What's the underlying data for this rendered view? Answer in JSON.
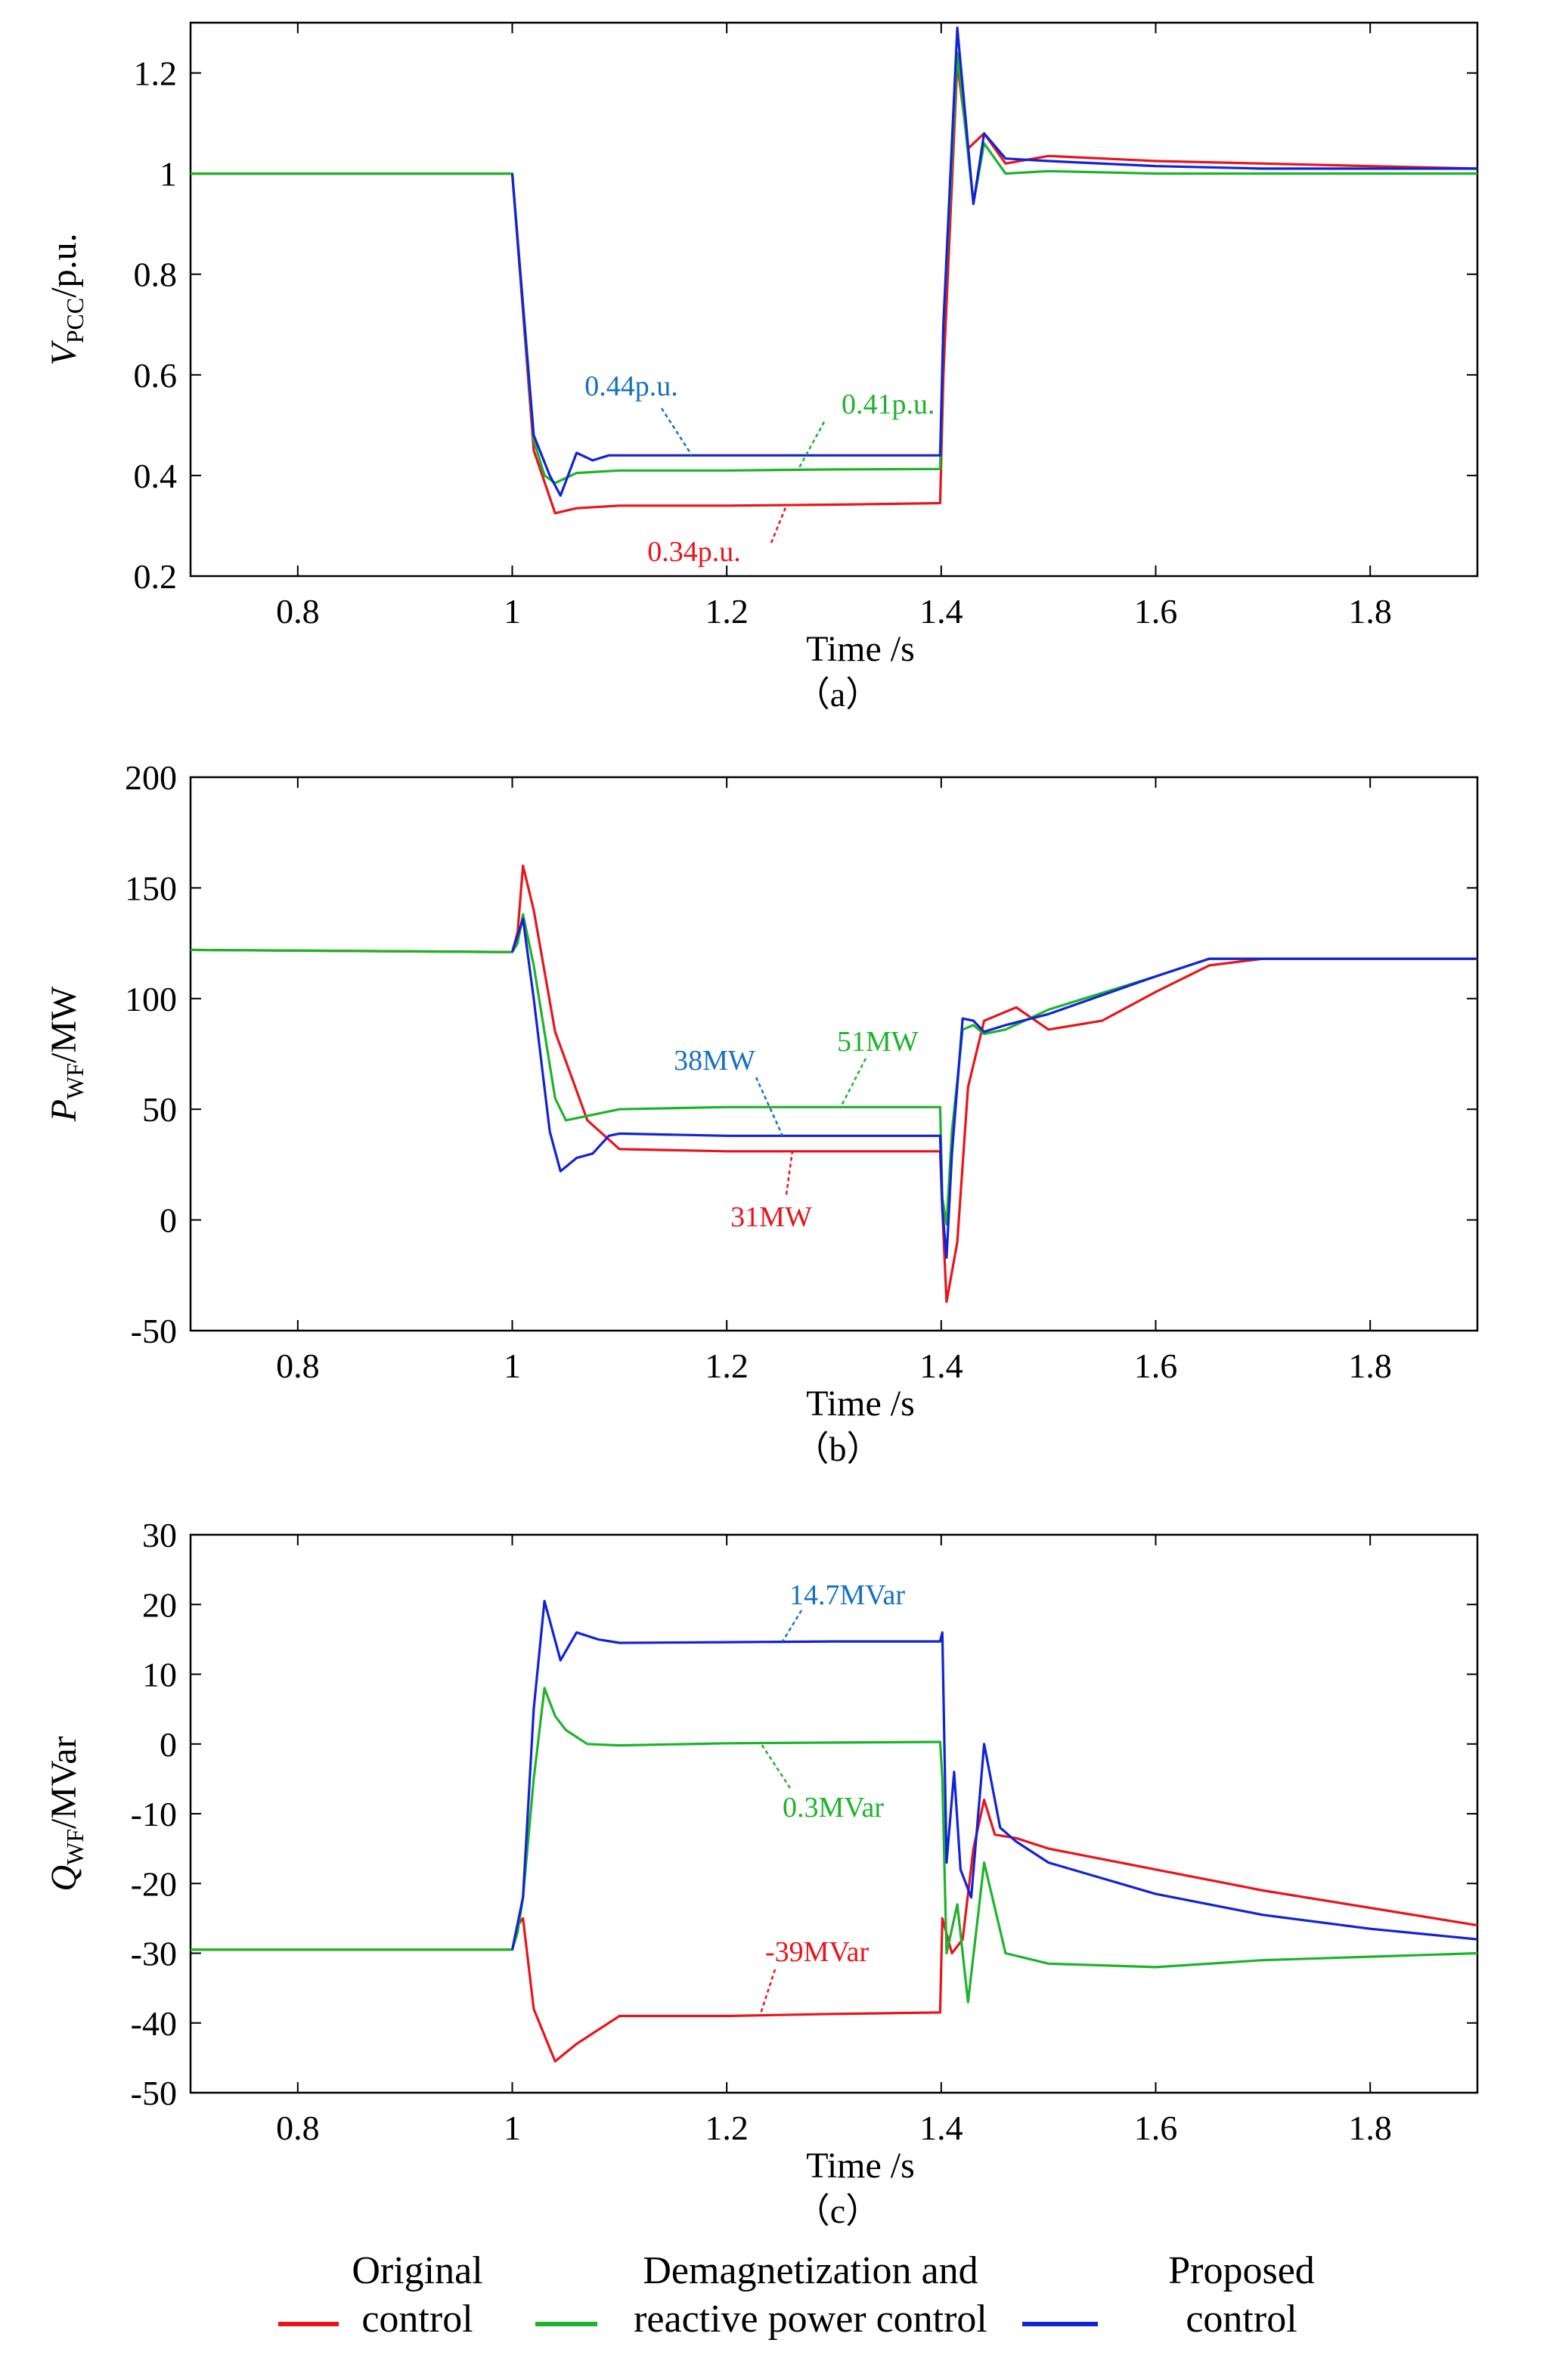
{
  "colors": {
    "original": "#e8141b",
    "demag": "#1db32b",
    "proposed": "#1222d6",
    "annot_original": "#e8141b",
    "annot_demag": "#1db32b",
    "annot_proposed": "#1670c2"
  },
  "legend": [
    {
      "key": "original",
      "lines": [
        "Original",
        "control"
      ]
    },
    {
      "key": "demag",
      "lines": [
        "Demagnetization and",
        "reactive power control"
      ]
    },
    {
      "key": "proposed",
      "lines": [
        "Proposed",
        "control"
      ]
    }
  ],
  "chart_data": [
    {
      "type": "line",
      "caption": "（a）",
      "xlabel": "Time /s",
      "ylabel_main": "V",
      "ylabel_sub": "PCC",
      "ylabel_unit": "/p.u.",
      "xlim": [
        0.7,
        1.9
      ],
      "ylim": [
        0.2,
        1.3
      ],
      "xticks": [
        0.8,
        1,
        1.2,
        1.4,
        1.6,
        1.8
      ],
      "xtick_labels": [
        "0.8",
        "1",
        "1.2",
        "1.4",
        "1.6",
        "1.8"
      ],
      "yticks": [
        0.2,
        0.4,
        0.6,
        0.8,
        1,
        1.2
      ],
      "ytick_labels": [
        "0.2",
        "0.4",
        "0.6",
        "0.8",
        "1",
        "1.2"
      ],
      "series": [
        {
          "key": "original",
          "x": [
            0.7,
            1.0,
            1.02,
            1.04,
            1.06,
            1.1,
            1.2,
            1.3,
            1.399,
            1.402,
            1.415,
            1.425,
            1.44,
            1.46,
            1.5,
            1.6,
            1.7,
            1.8,
            1.9
          ],
          "y": [
            1.0,
            1.0,
            0.45,
            0.325,
            0.335,
            0.34,
            0.34,
            0.342,
            0.345,
            0.6,
            1.22,
            1.05,
            1.08,
            1.02,
            1.035,
            1.025,
            1.02,
            1.015,
            1.01
          ]
        },
        {
          "key": "demag",
          "x": [
            0.7,
            1.0,
            1.02,
            1.03,
            1.04,
            1.06,
            1.1,
            1.2,
            1.3,
            1.399,
            1.402,
            1.415,
            1.43,
            1.44,
            1.46,
            1.5,
            1.6,
            1.7,
            1.8,
            1.9
          ],
          "y": [
            1.0,
            1.0,
            0.47,
            0.4,
            0.385,
            0.405,
            0.41,
            0.41,
            0.412,
            0.413,
            0.7,
            1.24,
            0.94,
            1.06,
            1.0,
            1.005,
            1.0,
            1.0,
            1.0,
            1.0
          ]
        },
        {
          "key": "proposed",
          "x": [
            1.0,
            1.02,
            1.035,
            1.045,
            1.06,
            1.075,
            1.09,
            1.1,
            1.2,
            1.3,
            1.399,
            1.402,
            1.415,
            1.43,
            1.44,
            1.46,
            1.5,
            1.6,
            1.7,
            1.8,
            1.9
          ],
          "y": [
            1.0,
            0.48,
            0.4,
            0.36,
            0.445,
            0.43,
            0.44,
            0.44,
            0.44,
            0.44,
            0.44,
            0.7,
            1.29,
            0.94,
            1.08,
            1.03,
            1.025,
            1.015,
            1.01,
            1.01,
            1.01
          ]
        }
      ],
      "annotations": [
        {
          "text": "0.44p.u.",
          "key": "annot_proposed",
          "value": 0.44
        },
        {
          "text": "0.41p.u.",
          "key": "annot_demag",
          "value": 0.41
        },
        {
          "text": "0.34p.u.",
          "key": "annot_original",
          "value": 0.34
        }
      ]
    },
    {
      "type": "line",
      "caption": "（b）",
      "xlabel": "Time /s",
      "ylabel_main": "P",
      "ylabel_sub": "WF",
      "ylabel_unit": "/MW",
      "xlim": [
        0.7,
        1.9
      ],
      "ylim": [
        -50,
        200
      ],
      "xticks": [
        0.8,
        1,
        1.2,
        1.4,
        1.6,
        1.8
      ],
      "xtick_labels": [
        "0.8",
        "1",
        "1.2",
        "1.4",
        "1.6",
        "1.8"
      ],
      "yticks": [
        -50,
        0,
        50,
        100,
        150,
        200
      ],
      "ytick_labels": [
        "-50",
        "0",
        "50",
        "100",
        "150",
        "200"
      ],
      "series": [
        {
          "key": "original",
          "x": [
            0.7,
            1.0,
            1.005,
            1.01,
            1.02,
            1.04,
            1.07,
            1.1,
            1.2,
            1.3,
            1.399,
            1.401,
            1.405,
            1.415,
            1.425,
            1.44,
            1.455,
            1.47,
            1.5,
            1.55,
            1.6,
            1.65,
            1.7,
            1.8,
            1.9
          ],
          "y": [
            122,
            121,
            130,
            160,
            140,
            85,
            45,
            32,
            31,
            31,
            31,
            5,
            -37,
            -10,
            60,
            90,
            93,
            96,
            86,
            90,
            103,
            115,
            118,
            118,
            118
          ]
        },
        {
          "key": "demag",
          "x": [
            0.7,
            1.0,
            1.005,
            1.01,
            1.02,
            1.04,
            1.05,
            1.06,
            1.1,
            1.2,
            1.3,
            1.399,
            1.401,
            1.405,
            1.41,
            1.42,
            1.43,
            1.44,
            1.46,
            1.5,
            1.6,
            1.65,
            1.7,
            1.8,
            1.9
          ],
          "y": [
            122,
            121,
            125,
            138,
            115,
            55,
            45,
            46,
            50,
            51,
            51,
            51,
            10,
            -2,
            40,
            86,
            88,
            84,
            86,
            95,
            110,
            118,
            118,
            118,
            118
          ]
        },
        {
          "key": "proposed",
          "x": [
            1.0,
            1.01,
            1.02,
            1.035,
            1.045,
            1.06,
            1.075,
            1.09,
            1.1,
            1.2,
            1.3,
            1.399,
            1.401,
            1.405,
            1.41,
            1.42,
            1.43,
            1.44,
            1.46,
            1.5,
            1.6,
            1.65,
            1.7,
            1.8,
            1.9
          ],
          "y": [
            121,
            136,
            100,
            40,
            22,
            28,
            30,
            38,
            39,
            38,
            38,
            38,
            5,
            -17,
            30,
            91,
            90,
            85,
            88,
            93,
            110,
            118,
            118,
            118,
            118
          ]
        }
      ],
      "annotations": [
        {
          "text": "38MW",
          "key": "annot_proposed",
          "value": 38
        },
        {
          "text": "51MW",
          "key": "annot_demag",
          "value": 51
        },
        {
          "text": "31MW",
          "key": "annot_original",
          "value": 31
        }
      ]
    },
    {
      "type": "line",
      "caption": "（c）",
      "xlabel": "Time /s",
      "ylabel_main": "Q",
      "ylabel_sub": "WF",
      "ylabel_unit": "/MVar",
      "xlim": [
        0.7,
        1.9
      ],
      "ylim": [
        -50,
        30
      ],
      "xticks": [
        0.8,
        1,
        1.2,
        1.4,
        1.6,
        1.8
      ],
      "xtick_labels": [
        "0.8",
        "1",
        "1.2",
        "1.4",
        "1.6",
        "1.8"
      ],
      "yticks": [
        -50,
        -40,
        -30,
        -20,
        -10,
        0,
        10,
        20,
        30
      ],
      "ytick_labels": [
        "-50",
        "-40",
        "-30",
        "-20",
        "-10",
        "0",
        "10",
        "20",
        "30"
      ],
      "series": [
        {
          "key": "original",
          "x": [
            0.7,
            1.0,
            1.005,
            1.01,
            1.02,
            1.04,
            1.06,
            1.1,
            1.2,
            1.3,
            1.399,
            1.401,
            1.41,
            1.42,
            1.43,
            1.44,
            1.45,
            1.47,
            1.5,
            1.6,
            1.7,
            1.8,
            1.9
          ],
          "y": [
            -29.5,
            -29.5,
            -26,
            -25,
            -38,
            -45.5,
            -43,
            -39,
            -39,
            -38.7,
            -38.5,
            -25,
            -30,
            -28,
            -15,
            -8,
            -13,
            -13.5,
            -15,
            -18,
            -21,
            -23.5,
            -26
          ]
        },
        {
          "key": "demag",
          "x": [
            0.7,
            1.0,
            1.005,
            1.01,
            1.02,
            1.03,
            1.04,
            1.05,
            1.07,
            1.1,
            1.2,
            1.3,
            1.399,
            1.401,
            1.405,
            1.415,
            1.425,
            1.44,
            1.46,
            1.5,
            1.6,
            1.7,
            1.8,
            1.9
          ],
          "y": [
            -29.5,
            -29.5,
            -27,
            -22,
            -5,
            8,
            4,
            2,
            0,
            -0.2,
            0.1,
            0.2,
            0.3,
            -5,
            -30,
            -23,
            -37,
            -17,
            -30,
            -31.5,
            -32,
            -31,
            -30.5,
            -30
          ]
        },
        {
          "key": "proposed",
          "x": [
            1.0,
            1.01,
            1.02,
            1.03,
            1.045,
            1.06,
            1.08,
            1.1,
            1.2,
            1.3,
            1.399,
            1.401,
            1.405,
            1.412,
            1.418,
            1.428,
            1.44,
            1.455,
            1.47,
            1.5,
            1.6,
            1.7,
            1.8,
            1.9
          ],
          "y": [
            -29.5,
            -22,
            5,
            20.5,
            12,
            16,
            15,
            14.5,
            14.6,
            14.7,
            14.7,
            16,
            -17,
            -4,
            -18,
            -22,
            0,
            -12,
            -14,
            -17,
            -21.5,
            -24.5,
            -26.5,
            -28
          ]
        }
      ],
      "annotations": [
        {
          "text": "14.7MVar",
          "key": "annot_proposed",
          "value": 14.7
        },
        {
          "text": "0.3MVar",
          "key": "annot_demag",
          "value": 0.3
        },
        {
          "text": "-39MVar",
          "key": "annot_original",
          "value": -39
        }
      ]
    }
  ]
}
